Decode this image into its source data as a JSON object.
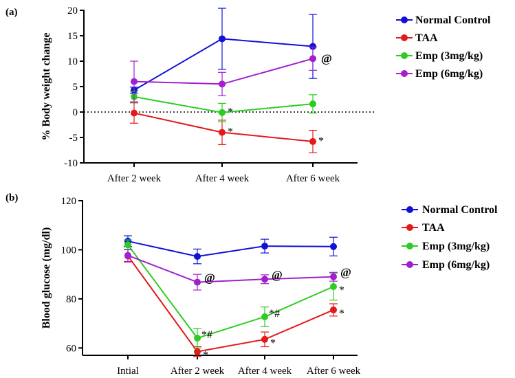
{
  "chart_data": [
    {
      "panel_label": "(a)",
      "type": "line",
      "categories": [
        "After 2 week",
        "After 4 week",
        "After 6 week"
      ],
      "ylabel": "% Body weight change",
      "ylim": [
        -10,
        20
      ],
      "yticks": [
        "-10",
        "-5",
        "0",
        "5",
        "10",
        "15",
        "20"
      ],
      "series": [
        {
          "name": "Normal Control",
          "color": "#1010d8",
          "values": [
            4.3,
            14.4,
            12.9
          ],
          "err": [
            0.6,
            6.0,
            6.3
          ],
          "marks": [
            "",
            "",
            ""
          ]
        },
        {
          "name": "TAA",
          "color": "#e31a1c",
          "values": [
            -0.2,
            -4.0,
            -5.8
          ],
          "err": [
            2.0,
            2.4,
            2.2
          ],
          "marks": [
            "",
            "*",
            "*"
          ]
        },
        {
          "name": "Emp (3mg/kg)",
          "color": "#2ecc22",
          "values": [
            3.0,
            -0.1,
            1.6
          ],
          "err": [
            1.1,
            1.8,
            1.8
          ],
          "marks": [
            "",
            "*",
            ""
          ]
        },
        {
          "name": "Emp (6mg/kg)",
          "color": "#a020d0",
          "values": [
            6.0,
            5.5,
            10.5
          ],
          "err": [
            4.0,
            2.3,
            2.3
          ],
          "marks": [
            "",
            "",
            "@"
          ]
        }
      ]
    },
    {
      "panel_label": "(b)",
      "type": "line",
      "categories": [
        "Intial",
        "After 2 week",
        "After 4 week",
        "After 6 week"
      ],
      "ylabel": "Blood glucose (mg/dl)",
      "ylim": [
        57,
        120
      ],
      "yticks": [
        "60",
        "80",
        "100",
        "120"
      ],
      "series": [
        {
          "name": "Normal Control",
          "color": "#1010d8",
          "values": [
            103.5,
            97.3,
            101.5,
            101.3
          ],
          "err": [
            2.2,
            3.0,
            2.8,
            3.8
          ],
          "marks": [
            "",
            "",
            "",
            ""
          ]
        },
        {
          "name": "TAA",
          "color": "#e31a1c",
          "values": [
            97.5,
            58.5,
            63.5,
            75.5
          ],
          "err": [
            2.5,
            2.0,
            3.0,
            2.5
          ],
          "marks": [
            "",
            "*",
            "*",
            "*"
          ]
        },
        {
          "name": "Emp (3mg/kg)",
          "color": "#2ecc22",
          "values": [
            102.0,
            64.0,
            72.7,
            85.0
          ],
          "err": [
            2.0,
            4.0,
            4.0,
            5.5
          ],
          "marks": [
            "",
            "*#",
            "*#",
            "*"
          ]
        },
        {
          "name": "Emp (6mg/kg)",
          "color": "#a020d0",
          "values": [
            97.7,
            86.8,
            88.0,
            89.0
          ],
          "err": [
            2.5,
            3.2,
            1.8,
            1.8
          ],
          "marks": [
            "",
            "@",
            "@",
            "@"
          ]
        }
      ]
    }
  ]
}
